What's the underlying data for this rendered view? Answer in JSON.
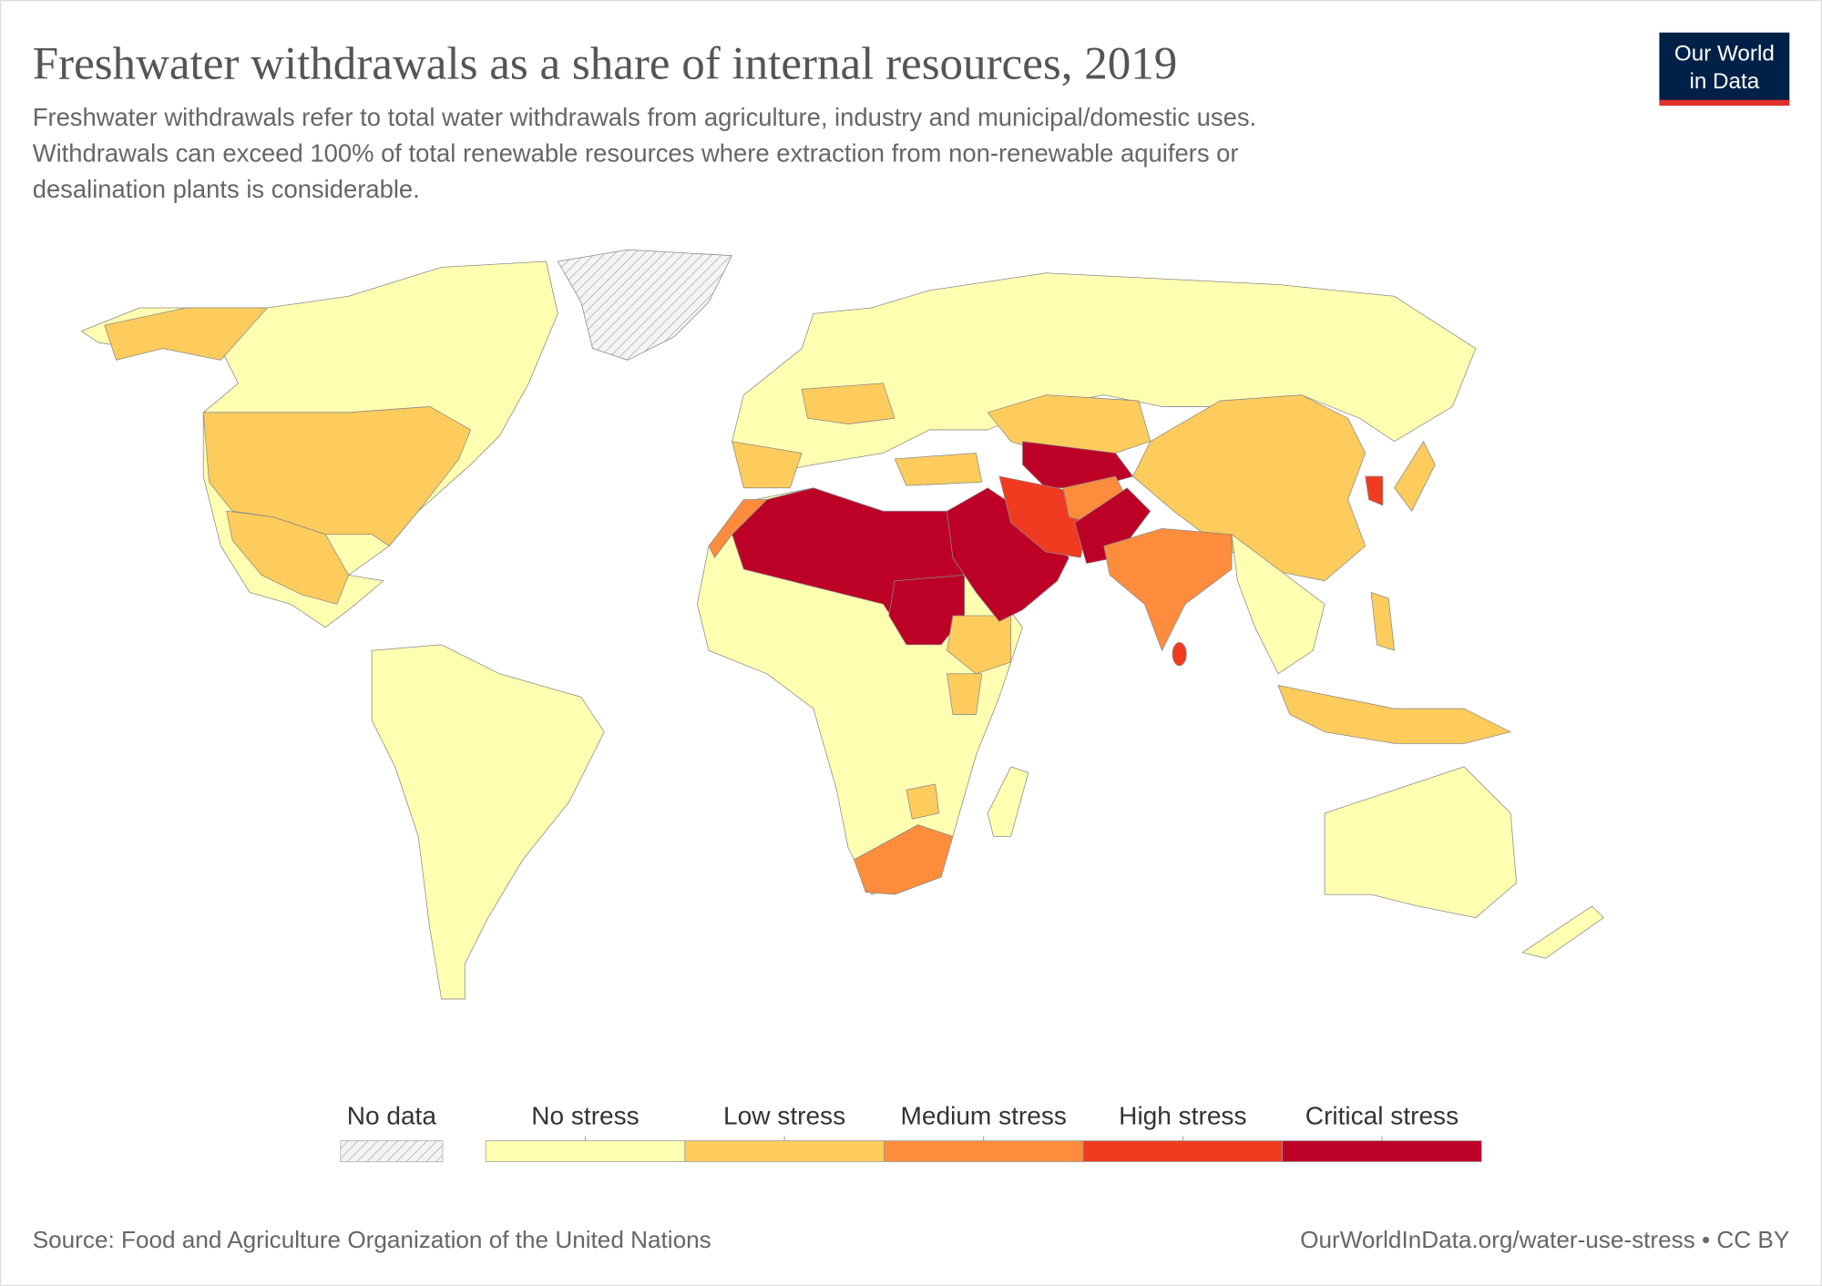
{
  "header": {
    "title": "Freshwater withdrawals as a share of internal resources, 2019",
    "subtitle_lines": [
      "Freshwater withdrawals refer to total water withdrawals from agriculture, industry and municipal/domestic uses.",
      "Withdrawals can exceed 100% of total renewable resources where extraction from non-renewable aquifers or",
      "desalination plants is considerable."
    ]
  },
  "logo": {
    "lines": [
      "Our World",
      "in Data"
    ]
  },
  "legend": {
    "no_data": "No data",
    "categories": [
      {
        "name": "No stress",
        "color": "#ffffb2"
      },
      {
        "name": "Low stress",
        "color": "#fecc5c"
      },
      {
        "name": "Medium stress",
        "color": "#fd8d3c"
      },
      {
        "name": "High stress",
        "color": "#f03b20"
      },
      {
        "name": "Critical stress",
        "color": "#bd0026"
      }
    ]
  },
  "footer": {
    "source": "Source: Food and Agriculture Organization of the United Nations",
    "url": "OurWorldInData.org/water-use-stress • CC BY"
  }
}
